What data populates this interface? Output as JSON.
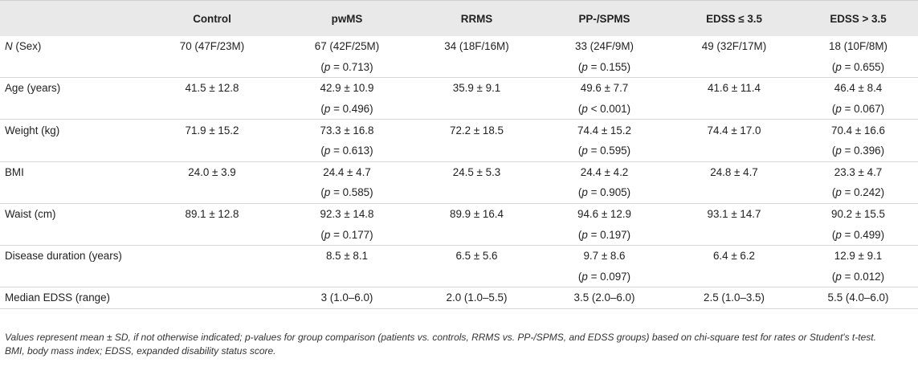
{
  "table": {
    "headers": [
      "",
      "Control",
      "pwMS",
      "RRMS",
      "PP-/SPMS",
      "EDSS ≤ 3.5",
      "EDSS > 3.5"
    ],
    "rows": [
      {
        "label_italic": "N",
        "label": " (Sex)",
        "values": [
          "70 (47F/23M)",
          "67 (42F/25M)",
          "34 (18F/16M)",
          "33 (24F/9M)",
          "49 (32F/17M)",
          "18 (10F/8M)"
        ],
        "pvalues": [
          "",
          "(p = 0.713)",
          "",
          "(p = 0.155)",
          "",
          "(p = 0.655)"
        ]
      },
      {
        "label": "Age (years)",
        "values": [
          "41.5 ± 12.8",
          "42.9 ± 10.9",
          "35.9 ± 9.1",
          "49.6 ± 7.7",
          "41.6 ± 11.4",
          "46.4 ± 8.4"
        ],
        "pvalues": [
          "",
          "(p = 0.496)",
          "",
          "(p < 0.001)",
          "",
          "(p = 0.067)"
        ]
      },
      {
        "label": "Weight (kg)",
        "values": [
          "71.9 ± 15.2",
          "73.3 ± 16.8",
          "72.2 ± 18.5",
          "74.4 ± 15.2",
          "74.4 ± 17.0",
          "70.4 ± 16.6"
        ],
        "pvalues": [
          "",
          "(p = 0.613)",
          "",
          "(p = 0.595)",
          "",
          "(p = 0.396)"
        ]
      },
      {
        "label": "BMI",
        "values": [
          "24.0 ± 3.9",
          "24.4 ± 4.7",
          "24.5 ± 5.3",
          "24.4 ± 4.2",
          "24.8 ± 4.7",
          "23.3 ± 4.7"
        ],
        "pvalues": [
          "",
          "(p = 0.585)",
          "",
          "(p = 0.905)",
          "",
          "(p = 0.242)"
        ]
      },
      {
        "label": "Waist (cm)",
        "values": [
          "89.1 ± 12.8",
          "92.3 ± 14.8",
          "89.9 ± 16.4",
          "94.6 ± 12.9",
          "93.1 ± 14.7",
          "90.2 ± 15.5"
        ],
        "pvalues": [
          "",
          "(p = 0.177)",
          "",
          "(p = 0.197)",
          "",
          "(p = 0.499)"
        ]
      },
      {
        "label": "Disease duration (years)",
        "values": [
          "",
          "8.5 ± 8.1",
          "6.5 ± 5.6",
          "9.7 ± 8.6",
          "6.4 ± 6.2",
          "12.9 ± 9.1"
        ],
        "pvalues": [
          "",
          "",
          "",
          "(p = 0.097)",
          "",
          "(p = 0.012)"
        ]
      },
      {
        "label": "Median EDSS (range)",
        "values": [
          "",
          "3 (1.0–6.0)",
          "2.0 (1.0–5.5)",
          "3.5 (2.0–6.0)",
          "2.5 (1.0–3.5)",
          "5.5 (4.0–6.0)"
        ],
        "pvalues": []
      }
    ]
  },
  "footnotes": {
    "line1": "Values represent mean ± SD, if not otherwise indicated; p-values for group comparison (patients vs. controls, RRMS vs. PP-/SPMS, and EDSS groups) based on chi-square test for rates or Student's t-test.",
    "line2": "BMI, body mass index; EDSS, expanded disability status score."
  }
}
